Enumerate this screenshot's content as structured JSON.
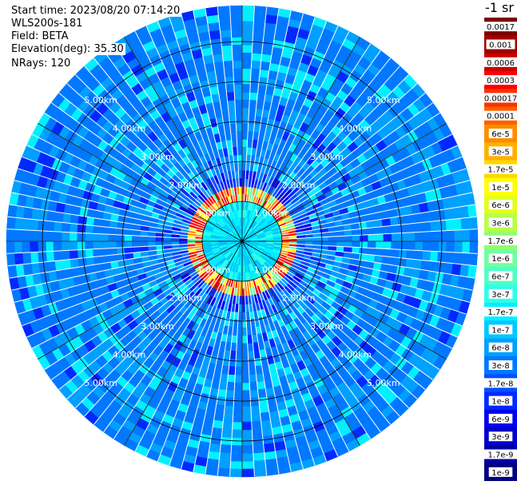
{
  "info": {
    "start_time": "Start time: 2023/08/20 07:14:20",
    "instrument": "WLS200s-181",
    "field": "Field: BETA",
    "elevation": "Elevation(deg): 35.30",
    "nrays": "NRays: 120"
  },
  "chart_data": {
    "type": "polar-ppi",
    "field": "BETA",
    "nrays": 120,
    "range_rings_km": [
      1,
      2,
      3,
      4,
      5
    ],
    "max_range_km": 5.9,
    "range_labels": [
      "1.00km",
      "2.00km",
      "3.00km",
      "4.00km",
      "5.00km"
    ],
    "radial_spokes_deg": [
      0,
      30,
      60,
      90,
      120,
      150,
      180,
      210,
      240,
      270,
      300,
      330
    ],
    "high_backscatter_ring_km": [
      1.0,
      1.3
    ],
    "colorbar": {
      "unit": "-1 sr",
      "labels": [
        "0.0017",
        "0.001",
        "0.0006",
        "0.0003",
        "0.00017",
        "0.0001",
        "6e-5",
        "3e-5",
        "1.7e-5",
        "1e-5",
        "6e-6",
        "3e-6",
        "1.7e-6",
        "1e-6",
        "6e-7",
        "3e-7",
        "1.7e-7",
        "1e-7",
        "6e-8",
        "3e-8",
        "1.7e-8",
        "1e-8",
        "6e-9",
        "3e-9",
        "1.7e-9",
        "1e-9"
      ],
      "colors": [
        "#7f0000",
        "#a00000",
        "#c80000",
        "#ff0000",
        "#ff3000",
        "#ff6000",
        "#ff8c00",
        "#ffb000",
        "#ffd800",
        "#ffff00",
        "#e0ff20",
        "#b8ff48",
        "#90ff70",
        "#70ffa0",
        "#50ffc8",
        "#30ffe8",
        "#00f0ff",
        "#00c8ff",
        "#00a0ff",
        "#0078ff",
        "#0050ff",
        "#0028ff",
        "#0000f0",
        "#0000c8",
        "#0000a0",
        "#000080"
      ]
    }
  }
}
